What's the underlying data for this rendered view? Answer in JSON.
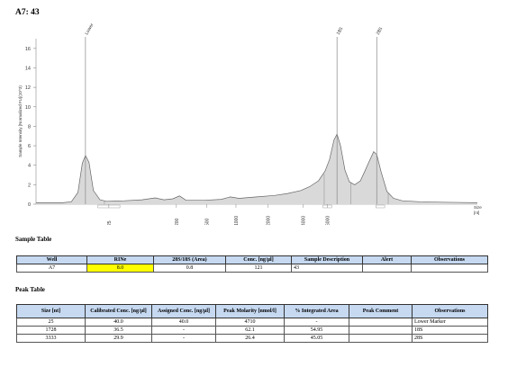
{
  "header": {
    "title": "A7: 43"
  },
  "chart_data": {
    "type": "line",
    "title": "",
    "xlabel": "Size [nt]",
    "x_unit_label": "[nt]",
    "x_unit_name": "Size",
    "ylabel": "Sample Intensity [Normalized FU](10^3)",
    "ylim": [
      0,
      17
    ],
    "yticks": [
      0,
      2,
      4,
      6,
      8,
      10,
      12,
      14,
      16
    ],
    "xticks": [
      "25",
      "200",
      "500",
      "1000",
      "2000",
      "4000",
      "6000"
    ],
    "peaks": [
      {
        "label": "Lower",
        "size": 25
      },
      {
        "label": "18S",
        "size": 1728
      },
      {
        "label": "28S",
        "size": 3333
      }
    ],
    "series": [
      {
        "points": [
          [
            0.0,
            0.15
          ],
          [
            0.06,
            0.15
          ],
          [
            0.08,
            0.25
          ],
          [
            0.095,
            1.2
          ],
          [
            0.105,
            4.2
          ],
          [
            0.112,
            5.0
          ],
          [
            0.12,
            4.3
          ],
          [
            0.13,
            1.4
          ],
          [
            0.145,
            0.45
          ],
          [
            0.16,
            0.3
          ],
          [
            0.2,
            0.35
          ],
          [
            0.24,
            0.45
          ],
          [
            0.27,
            0.65
          ],
          [
            0.29,
            0.45
          ],
          [
            0.31,
            0.55
          ],
          [
            0.325,
            0.85
          ],
          [
            0.34,
            0.4
          ],
          [
            0.38,
            0.4
          ],
          [
            0.42,
            0.5
          ],
          [
            0.44,
            0.75
          ],
          [
            0.46,
            0.6
          ],
          [
            0.5,
            0.75
          ],
          [
            0.54,
            0.9
          ],
          [
            0.57,
            1.1
          ],
          [
            0.6,
            1.4
          ],
          [
            0.62,
            1.8
          ],
          [
            0.64,
            2.4
          ],
          [
            0.655,
            3.4
          ],
          [
            0.665,
            4.6
          ],
          [
            0.675,
            6.6
          ],
          [
            0.682,
            7.2
          ],
          [
            0.69,
            6.0
          ],
          [
            0.7,
            3.5
          ],
          [
            0.71,
            2.3
          ],
          [
            0.722,
            2.0
          ],
          [
            0.735,
            2.4
          ],
          [
            0.745,
            3.4
          ],
          [
            0.755,
            4.4
          ],
          [
            0.765,
            5.4
          ],
          [
            0.772,
            5.1
          ],
          [
            0.782,
            3.3
          ],
          [
            0.795,
            1.3
          ],
          [
            0.81,
            0.6
          ],
          [
            0.83,
            0.35
          ],
          [
            0.87,
            0.25
          ],
          [
            0.92,
            0.2
          ],
          [
            1.0,
            0.15
          ]
        ]
      }
    ]
  },
  "sample_table": {
    "title": "Sample Table",
    "headers": [
      "Well",
      "RINe",
      "28S/18S (Area)",
      "Conc. [ng/µl]",
      "Sample Description",
      "Alert",
      "Observations"
    ],
    "rows": [
      [
        "A7",
        "8.0",
        "0.8",
        "121",
        "43",
        "",
        ""
      ]
    ]
  },
  "peak_table": {
    "title": "Peak Table",
    "headers": [
      "Size [nt]",
      "Calibrated Conc. [ng/µl]",
      "Assigned Conc. [ng/µl]",
      "Peak Molarity [nmol/l]",
      "% Integrated Area",
      "Peak Comment",
      "Observations"
    ],
    "rows": [
      [
        "25",
        "40.0",
        "40.0",
        "4710",
        "-",
        "",
        "Lower Marker"
      ],
      [
        "1728",
        "36.5",
        "-",
        "62.1",
        "54.95",
        "",
        "18S"
      ],
      [
        "3333",
        "29.9",
        "-",
        "26.4",
        "45.05",
        "",
        "28S"
      ]
    ]
  }
}
